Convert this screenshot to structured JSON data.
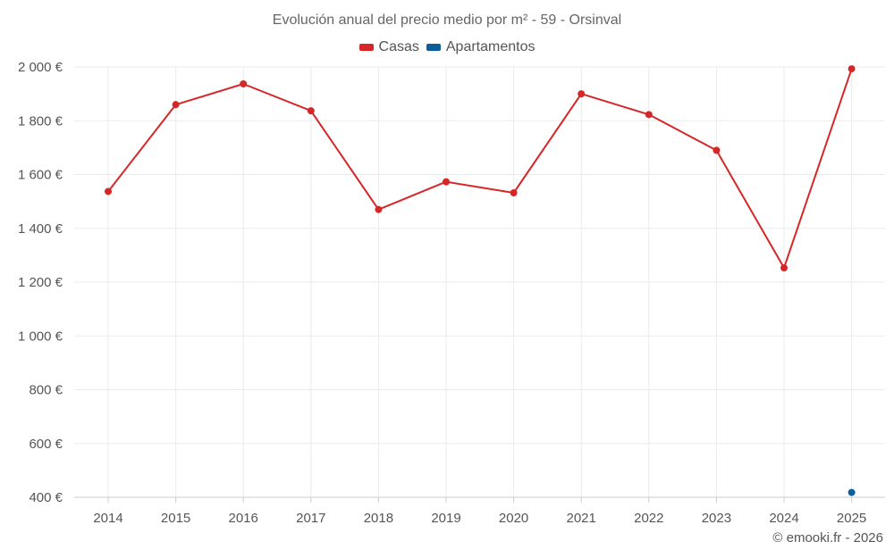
{
  "chart_data": {
    "type": "line",
    "title": "Evolución anual del precio medio por m² - 59 - Orsinval",
    "categories": [
      "2014",
      "2015",
      "2016",
      "2017",
      "2018",
      "2019",
      "2020",
      "2021",
      "2022",
      "2023",
      "2024",
      "2025"
    ],
    "series": [
      {
        "name": "Casas",
        "color": "#d62728",
        "values": [
          1537,
          1860,
          1937,
          1837,
          1470,
          1573,
          1532,
          1900,
          1823,
          1690,
          1253,
          1993
        ]
      },
      {
        "name": "Apartamentos",
        "color": "#0b5e9a",
        "values": [
          null,
          null,
          null,
          null,
          null,
          null,
          null,
          null,
          null,
          null,
          null,
          418
        ]
      }
    ],
    "ylim": [
      400,
      2000
    ],
    "yticks": [
      {
        "value": 2000,
        "label": "2 000 €"
      },
      {
        "value": 1800,
        "label": "1 800 €"
      },
      {
        "value": 1600,
        "label": "1 600 €"
      },
      {
        "value": 1400,
        "label": "1 400 €"
      },
      {
        "value": 1200,
        "label": "1 200 €"
      },
      {
        "value": 1000,
        "label": "1 000 €"
      },
      {
        "value": 800,
        "label": "800 €"
      },
      {
        "value": 600,
        "label": "600 €"
      },
      {
        "value": 400,
        "label": "400 €"
      }
    ],
    "grid": true,
    "legend_position": "top-center"
  },
  "legend": {
    "items": [
      {
        "label": "Casas",
        "color": "#d62728"
      },
      {
        "label": "Apartamentos",
        "color": "#0b5e9a"
      }
    ]
  },
  "credit": "© emooki.fr - 2026"
}
